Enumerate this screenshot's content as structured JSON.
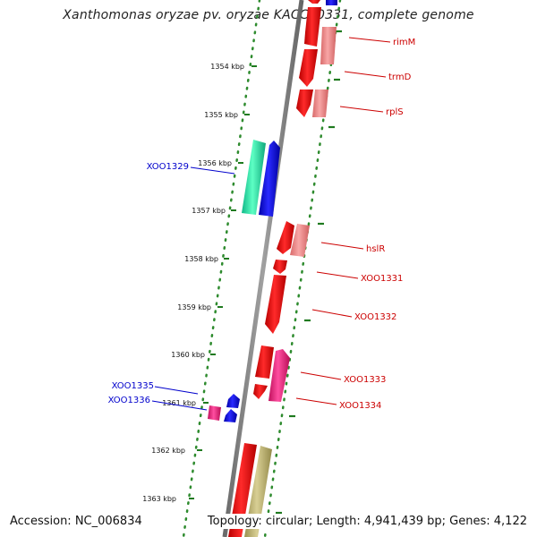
{
  "title": "Xanthomonas oryzae pv. oryzae KACC10331, complete genome",
  "accession": "Accession: NC_006834",
  "topology": "Topology: circular; Length: 4,941,439 bp; Genes: 4,122",
  "ruler_labels": [
    "1354 kbp",
    "1355 kbp",
    "1356 kbp",
    "1357 kbp",
    "1358 kbp",
    "1359 kbp",
    "1360 kbp",
    "1361 kbp",
    "1362 kbp",
    "1363 kbp"
  ],
  "gene_labels": {
    "rimM": "rimM",
    "trmD": "trmD",
    "rplS": "rplS",
    "XOO1329": "XOO1329",
    "hslR": "hslR",
    "XOO1331": "XOO1331",
    "XOO1332": "XOO1332",
    "XOO1333": "XOO1333",
    "XOO1334": "XOO1334",
    "XOO1335": "XOO1335",
    "XOO1336": "XOO1336"
  },
  "colors": {
    "forward_label": "#cc0000",
    "reverse_label": "#0000cc",
    "ruler": "#2e8b2e",
    "backbone": "#888888"
  }
}
